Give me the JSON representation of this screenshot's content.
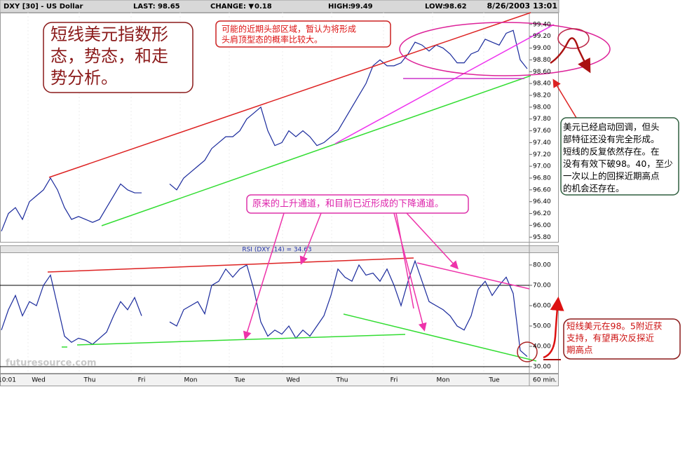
{
  "chart_data": {
    "type": "line",
    "header": {
      "symbol": "DXY [30] - US Dollar",
      "last_label": "LAST:",
      "last": 98.65,
      "change_label": "CHANGE: ▼",
      "change": 0.18,
      "high_label": "HIGH:",
      "high": 99.49,
      "low_label": "LOW:",
      "low": 98.62,
      "datetime": "8/26/2003 13:01"
    },
    "x_labels": [
      "10:01",
      "Wed",
      "Thu",
      "Fri",
      "Mon",
      "Tue",
      "Wed",
      "Thu",
      "Fri",
      "Mon",
      "Tue",
      "60 min."
    ],
    "series": [
      {
        "name": "DXY",
        "color": "#1a2a9c",
        "values": [
          95.9,
          96.2,
          96.3,
          96.1,
          96.4,
          96.5,
          96.6,
          96.8,
          96.6,
          96.3,
          96.1,
          96.15,
          96.1,
          96.05,
          96.1,
          96.3,
          96.5,
          96.7,
          96.6,
          96.55,
          96.55,
          null,
          null,
          null,
          96.7,
          96.6,
          96.8,
          96.9,
          97.0,
          97.1,
          97.3,
          97.4,
          97.5,
          97.5,
          97.6,
          97.8,
          97.9,
          98.0,
          97.6,
          97.35,
          97.4,
          97.6,
          97.5,
          97.6,
          97.5,
          97.35,
          97.4,
          97.5,
          97.6,
          97.8,
          98.0,
          98.2,
          98.4,
          98.7,
          98.8,
          98.7,
          98.7,
          98.75,
          98.9,
          99.1,
          99.05,
          98.95,
          99.05,
          99.0,
          98.9,
          98.75,
          98.75,
          98.9,
          98.95,
          99.15,
          99.1,
          99.05,
          99.25,
          99.3,
          98.8,
          98.65
        ]
      }
    ],
    "ylim": [
      95.72,
      99.6
    ],
    "yticks": [
      {
        "value": 95.8,
        "label": "95.80"
      },
      {
        "value": 96.0,
        "label": "96.00"
      },
      {
        "value": 96.2,
        "label": "96.20"
      },
      {
        "value": 96.4,
        "label": "96.40"
      },
      {
        "value": 96.6,
        "label": "96.60"
      },
      {
        "value": 96.8,
        "label": "96.80"
      },
      {
        "value": 97.0,
        "label": "97.00"
      },
      {
        "value": 97.2,
        "label": "97.20"
      },
      {
        "value": 97.4,
        "label": "97.40"
      },
      {
        "value": 97.6,
        "label": "97.60"
      },
      {
        "value": 97.8,
        "label": "97.80"
      },
      {
        "value": 98.0,
        "label": "98.00"
      },
      {
        "value": 98.2,
        "label": "98.20"
      },
      {
        "value": 98.4,
        "label": "98.40"
      },
      {
        "value": 98.6,
        "label": "98.60"
      },
      {
        "value": 98.8,
        "label": "98.80"
      },
      {
        "value": 99.0,
        "label": "99.00"
      },
      {
        "value": 99.2,
        "label": "99.20"
      },
      {
        "value": 99.4,
        "label": "99.40"
      }
    ],
    "rsi": {
      "title": "RSI (DXY ,14) = 34.63",
      "color": "#1a2a9c",
      "values": [
        48,
        58,
        65,
        55,
        62,
        60,
        70,
        75,
        60,
        45,
        42,
        44,
        43,
        41,
        44,
        47,
        55,
        62,
        58,
        64,
        55,
        null,
        null,
        null,
        52,
        50,
        58,
        60,
        62,
        56,
        70,
        72,
        78,
        74,
        78,
        80,
        68,
        52,
        45,
        48,
        46,
        50,
        44,
        48,
        45,
        50,
        55,
        65,
        78,
        74,
        72,
        80,
        75,
        76,
        72,
        78,
        70,
        60,
        72,
        82,
        72,
        62,
        60,
        58,
        55,
        50,
        48,
        55,
        68,
        72,
        65,
        70,
        74,
        66,
        38,
        35
      ],
      "ylim": [
        27.6,
        85.5
      ],
      "yticks": [
        {
          "value": 30,
          "label": "30.00"
        },
        {
          "value": 40,
          "label": "40.00"
        },
        {
          "value": 50,
          "label": "50.00"
        },
        {
          "value": 60,
          "label": "60.00"
        },
        {
          "value": 70,
          "label": "70.00"
        },
        {
          "value": 80,
          "label": "80.00"
        }
      ]
    },
    "watermark": "futuresource.com",
    "annotations": [
      {
        "lines": [
          "短线美元指数形",
          "态，势态，和走",
          "势分析。"
        ]
      },
      {
        "lines": [
          "可能的近期头部区域，暂认为将形成",
          "头肩顶型态的概率比较大。"
        ]
      },
      {
        "lines": [
          "美元已经启动回调，但头",
          "部特征还没有完全形成。",
          "短线的反复依然存在。在",
          "没有有效下破98。40，至少",
          "一次以上的回探近期高点",
          "的机会还存在。"
        ]
      },
      {
        "lines": [
          "原来的上升通道，和目前已近形成的下降通道。"
        ]
      },
      {
        "lines": [
          "短线美元在98。5附近获",
          "支持，有望再次反探近",
          "期高点"
        ]
      }
    ]
  }
}
